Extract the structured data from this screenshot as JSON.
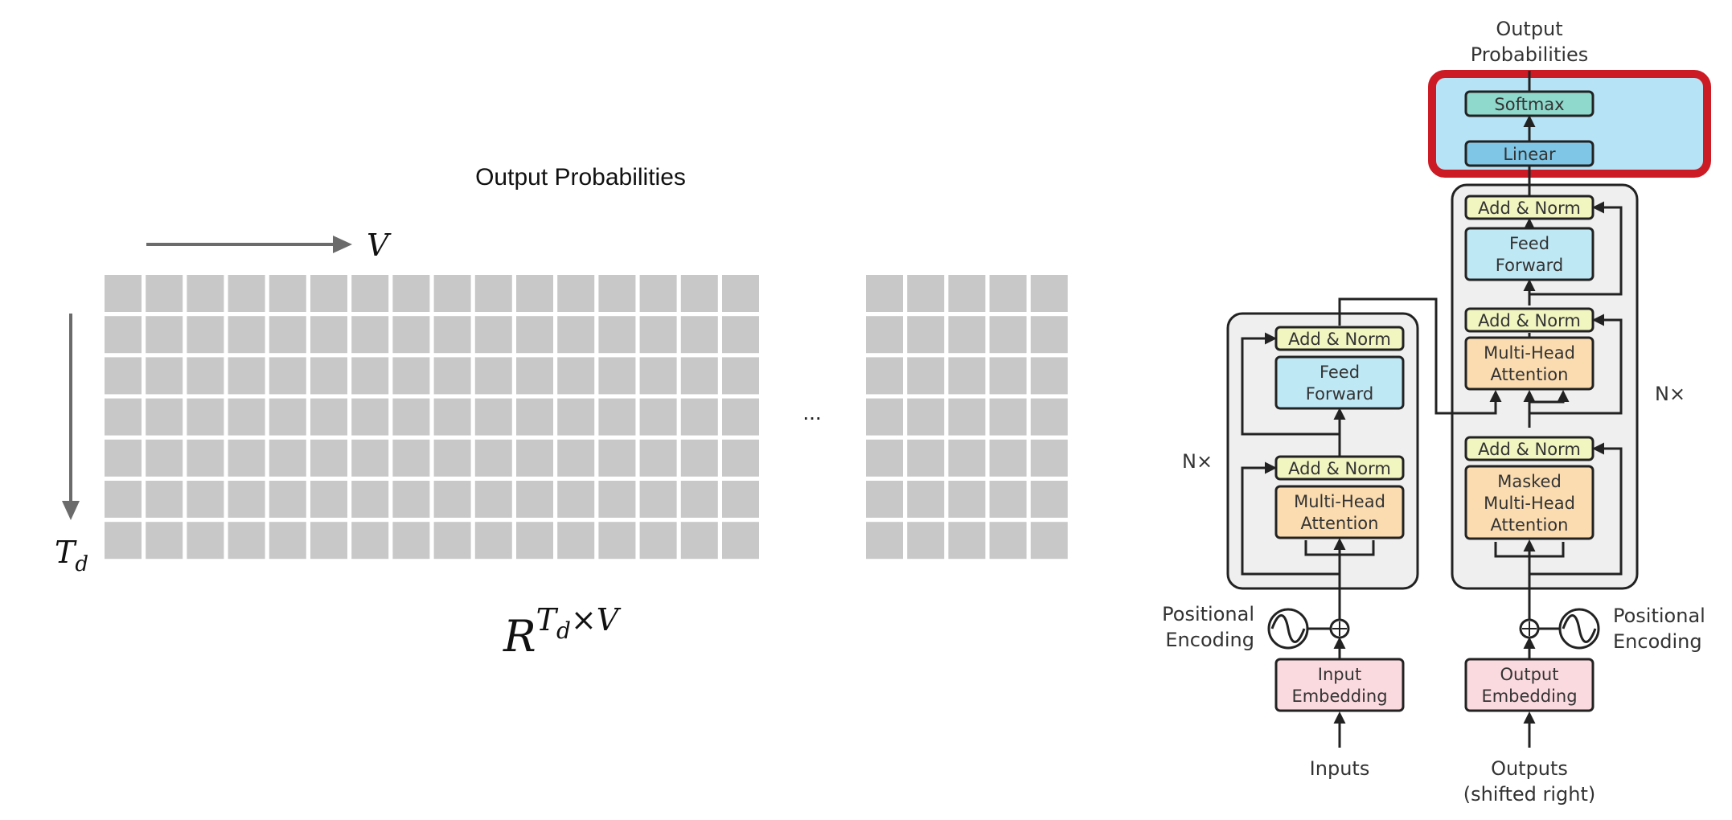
{
  "left_panel": {
    "title": "Output Probabilities",
    "v_label": "V",
    "td_label_main": "T",
    "td_label_sub": "d",
    "ellipsis": "...",
    "formula": {
      "base": "R",
      "sup_main": "T",
      "sup_sub": "d",
      "sup_rest": "×V"
    },
    "grid_left": {
      "rows": 7,
      "cols": 16
    },
    "grid_right": {
      "rows": 7,
      "cols": 5
    },
    "cell_color": "#c8c8c8",
    "arrow_color": "#6b6b6b"
  },
  "transformer": {
    "output_label_1": "Output",
    "output_label_2": "Probabilities",
    "softmax": "Softmax",
    "linear": "Linear",
    "highlight_color": "#cc1b24",
    "highlight_fill": "#b6e3f5",
    "encoder": {
      "add_norm_top": "Add & Norm",
      "ff_line1": "Feed",
      "ff_line2": "Forward",
      "add_norm_bottom": "Add & Norm",
      "mha_line1": "Multi-Head",
      "mha_line2": "Attention",
      "nx": "N×",
      "pos_enc_1": "Positional",
      "pos_enc_2": "Encoding",
      "emb_line1": "Input",
      "emb_line2": "Embedding",
      "inputs": "Inputs"
    },
    "decoder": {
      "add_norm_1": "Add & Norm",
      "ff_line1": "Feed",
      "ff_line2": "Forward",
      "add_norm_2": "Add & Norm",
      "mha_line1": "Multi-Head",
      "mha_line2": "Attention",
      "add_norm_3": "Add & Norm",
      "masked_line1": "Masked",
      "masked_line2": "Multi-Head",
      "masked_line3": "Attention",
      "nx": "N×",
      "pos_enc_1": "Positional",
      "pos_enc_2": "Encoding",
      "emb_line1": "Output",
      "emb_line2": "Embedding",
      "outputs_1": "Outputs",
      "outputs_2": "(shifted right)"
    },
    "colors": {
      "add_norm": "#f1f5c0",
      "feed_forward": "#bfe8f5",
      "attention": "#fbdcb0",
      "embedding": "#fbdadf",
      "softmax": "#8fd8cc",
      "linear": "#7fc6e6",
      "stack_bg": "#efefef"
    }
  }
}
